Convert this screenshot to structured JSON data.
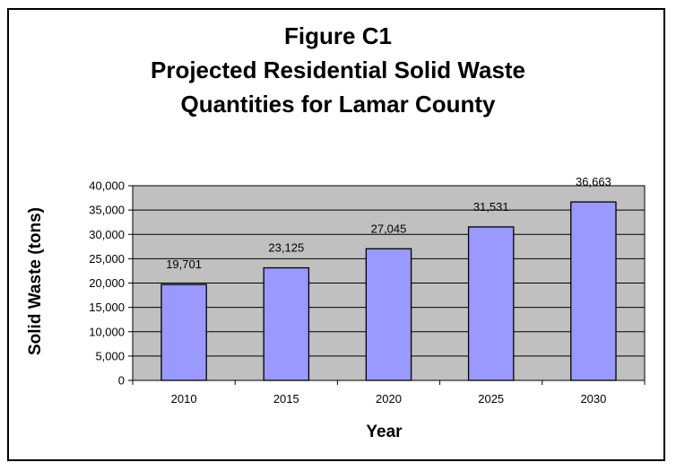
{
  "chart_data": {
    "type": "bar",
    "title_lines": [
      "Figure C1",
      "Projected Residential Solid Waste",
      "Quantities for Lamar County"
    ],
    "categories": [
      "2010",
      "2015",
      "2020",
      "2025",
      "2030"
    ],
    "values": [
      19701,
      23125,
      27045,
      31531,
      36663
    ],
    "data_labels": [
      "19,701",
      "23,125",
      "27,045",
      "31,531",
      "36,663"
    ],
    "xlabel": "Year",
    "ylabel": "Solid Waste (tons)",
    "ylim": [
      0,
      40000
    ],
    "yticks": [
      0,
      5000,
      10000,
      15000,
      20000,
      25000,
      30000,
      35000,
      40000
    ],
    "ytick_labels": [
      "0",
      "5,000",
      "10,000",
      "15,000",
      "20,000",
      "25,000",
      "30,000",
      "35,000",
      "40,000"
    ],
    "grid": true,
    "legend": "none",
    "colors": {
      "bar_fill": "#9999FF",
      "bar_stroke": "#000000",
      "plot_background": "#C0C0C0"
    }
  }
}
